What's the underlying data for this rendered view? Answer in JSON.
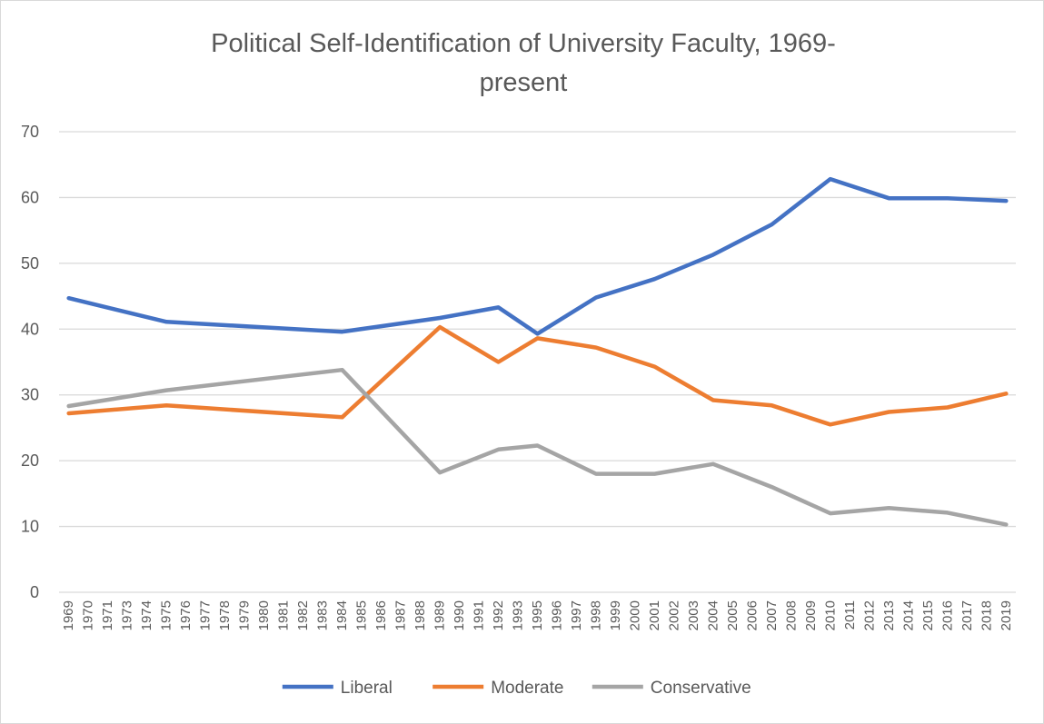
{
  "chart_data": {
    "type": "line",
    "title_line1": "Political Self-Identification  of University  Faculty, 1969-",
    "title_line2": "present",
    "xlabel": "",
    "ylabel": "",
    "ylim": [
      0,
      70
    ],
    "yticks": [
      0,
      10,
      20,
      30,
      40,
      50,
      60,
      70
    ],
    "grid": true,
    "legend_position": "bottom",
    "categories": [
      "1969",
      "1970",
      "1971",
      "1973",
      "1974",
      "1975",
      "1976",
      "1977",
      "1978",
      "1979",
      "1980",
      "1981",
      "1982",
      "1983",
      "1984",
      "1985",
      "1986",
      "1987",
      "1988",
      "1989",
      "1990",
      "1991",
      "1992",
      "1993",
      "1995",
      "1996",
      "1997",
      "1998",
      "1999",
      "2000",
      "2001",
      "2002",
      "2003",
      "2004",
      "2005",
      "2006",
      "2007",
      "2008",
      "2009",
      "2010",
      "2011",
      "2012",
      "2013",
      "2014",
      "2015",
      "2016",
      "2017",
      "2018",
      "2019"
    ],
    "series": [
      {
        "name": "Liberal",
        "color": "#4472c4",
        "points": [
          {
            "x": "1969",
            "y": 44.7
          },
          {
            "x": "1975",
            "y": 41.1
          },
          {
            "x": "1984",
            "y": 39.6
          },
          {
            "x": "1989",
            "y": 41.7
          },
          {
            "x": "1992",
            "y": 43.3
          },
          {
            "x": "1995",
            "y": 39.3
          },
          {
            "x": "1998",
            "y": 44.8
          },
          {
            "x": "2001",
            "y": 47.6
          },
          {
            "x": "2004",
            "y": 51.3
          },
          {
            "x": "2007",
            "y": 55.9
          },
          {
            "x": "2010",
            "y": 62.8
          },
          {
            "x": "2013",
            "y": 59.9
          },
          {
            "x": "2016",
            "y": 59.9
          },
          {
            "x": "2019",
            "y": 59.5
          }
        ]
      },
      {
        "name": "Moderate",
        "color": "#ed7d31",
        "points": [
          {
            "x": "1969",
            "y": 27.2
          },
          {
            "x": "1975",
            "y": 28.4
          },
          {
            "x": "1984",
            "y": 26.6
          },
          {
            "x": "1989",
            "y": 40.3
          },
          {
            "x": "1992",
            "y": 35.0
          },
          {
            "x": "1995",
            "y": 38.6
          },
          {
            "x": "1998",
            "y": 37.2
          },
          {
            "x": "2001",
            "y": 34.3
          },
          {
            "x": "2004",
            "y": 29.2
          },
          {
            "x": "2007",
            "y": 28.4
          },
          {
            "x": "2010",
            "y": 25.5
          },
          {
            "x": "2013",
            "y": 27.4
          },
          {
            "x": "2016",
            "y": 28.1
          },
          {
            "x": "2019",
            "y": 30.2
          }
        ]
      },
      {
        "name": "Conservative",
        "color": "#a5a5a5",
        "points": [
          {
            "x": "1969",
            "y": 28.3
          },
          {
            "x": "1975",
            "y": 30.7
          },
          {
            "x": "1984",
            "y": 33.8
          },
          {
            "x": "1989",
            "y": 18.2
          },
          {
            "x": "1992",
            "y": 21.7
          },
          {
            "x": "1995",
            "y": 22.3
          },
          {
            "x": "1998",
            "y": 18.0
          },
          {
            "x": "2001",
            "y": 18.0
          },
          {
            "x": "2004",
            "y": 19.5
          },
          {
            "x": "2007",
            "y": 16.0
          },
          {
            "x": "2010",
            "y": 12.0
          },
          {
            "x": "2013",
            "y": 12.8
          },
          {
            "x": "2016",
            "y": 12.1
          },
          {
            "x": "2019",
            "y": 10.3
          }
        ]
      }
    ]
  },
  "colors": {
    "grid": "#d9d9d9",
    "text": "#595959",
    "background": "#ffffff"
  }
}
